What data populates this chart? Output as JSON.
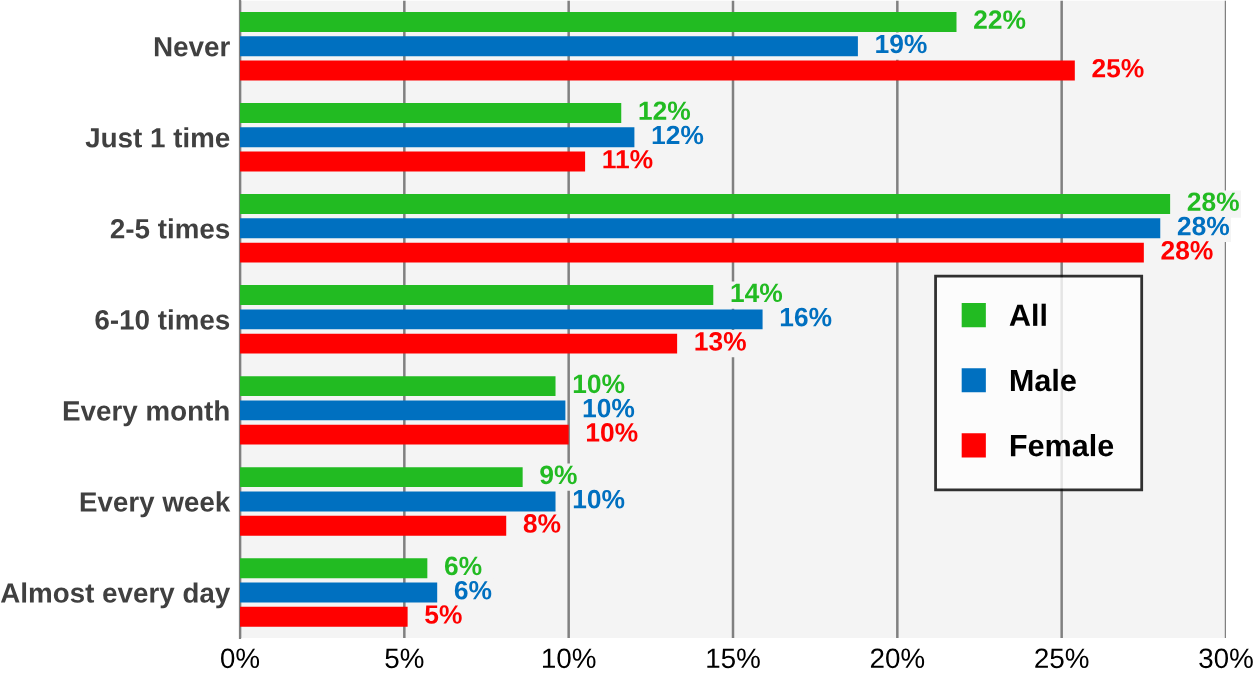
{
  "chart_data": {
    "type": "bar",
    "orientation": "horizontal",
    "categories": [
      "Never",
      "Just 1 time",
      "2-5 times",
      "6-10 times",
      "Every month",
      "Every week",
      "Almost every day"
    ],
    "series": [
      {
        "name": "All",
        "color": "#22bb22",
        "values": [
          21.8,
          11.6,
          28.3,
          14.4,
          9.6,
          8.6,
          5.7
        ],
        "value_labels": [
          "22%",
          "12%",
          "28%",
          "14%",
          "10%",
          "9%",
          "6%"
        ]
      },
      {
        "name": "Male",
        "color": "#0070c0",
        "values": [
          18.8,
          12.0,
          28.0,
          15.9,
          9.9,
          9.6,
          6.0
        ],
        "value_labels": [
          "19%",
          "12%",
          "28%",
          "16%",
          "10%",
          "10%",
          "6%"
        ]
      },
      {
        "name": "Female",
        "color": "#ff0000",
        "values": [
          25.4,
          10.5,
          27.5,
          13.3,
          10.0,
          8.1,
          5.1
        ],
        "value_labels": [
          "25%",
          "11%",
          "28%",
          "13%",
          "10%",
          "8%",
          "5%"
        ]
      }
    ],
    "xlim": [
      0,
      30
    ],
    "xticks": [
      {
        "value": 0,
        "label": "0%"
      },
      {
        "value": 5,
        "label": "5%"
      },
      {
        "value": 10,
        "label": "10%"
      },
      {
        "value": 15,
        "label": "15%"
      },
      {
        "value": 20,
        "label": "20%"
      },
      {
        "value": 25,
        "label": "25%"
      },
      {
        "value": 30,
        "label": "30%"
      }
    ],
    "grid": "x",
    "legend": "right"
  }
}
